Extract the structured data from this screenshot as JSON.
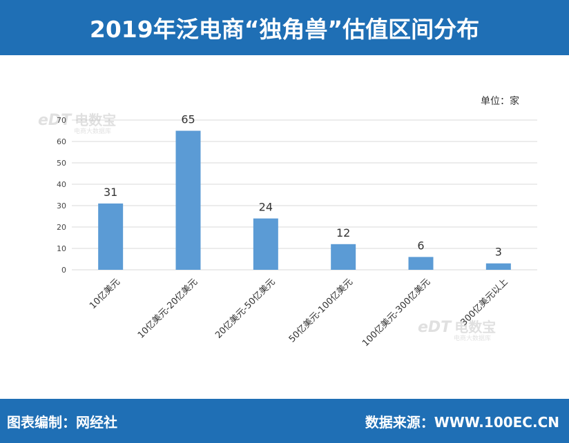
{
  "header": {
    "title": "2019年泛电商“独角兽”估值区间分布"
  },
  "footer": {
    "left_text": "图表编制：网经社",
    "right_text": "数据来源：WWW.100EC.CN"
  },
  "watermark": {
    "brand": "eDT",
    "name": "电数宝",
    "tagline": "电商大数据库"
  },
  "colors": {
    "header_bg": "#1f6fb5",
    "bar": "#5b9bd5",
    "grid": "#d9d9d9"
  },
  "chart_data": {
    "type": "bar",
    "unit_label": "单位：家",
    "categories": [
      "10亿美元",
      "10亿美元-20亿美元",
      "20亿美元-50亿美元",
      "50亿美元-100亿美元",
      "100亿美元-300亿美元",
      "300亿美元以上"
    ],
    "values": [
      31,
      65,
      24,
      12,
      6,
      3
    ],
    "ylim": [
      0,
      70
    ],
    "yticks": [
      0,
      10,
      20,
      30,
      40,
      50,
      60,
      70
    ],
    "grid": true,
    "legend": "none"
  }
}
